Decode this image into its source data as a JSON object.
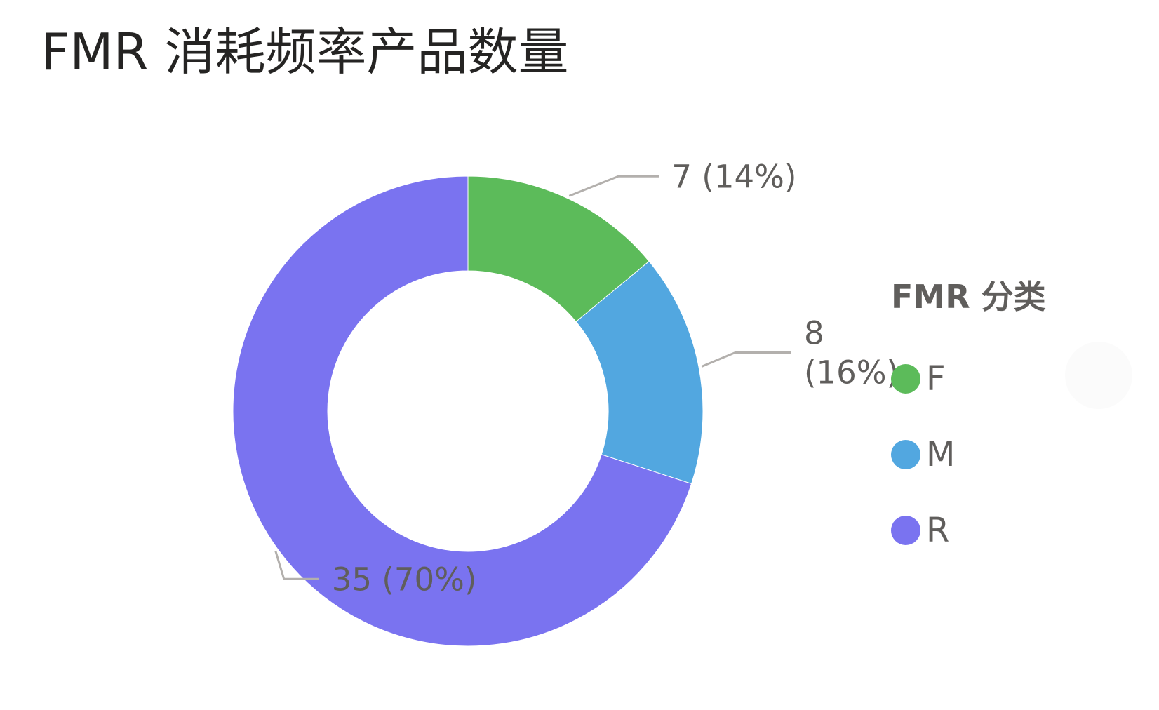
{
  "title": "FMR 消耗频率产品数量",
  "legend": {
    "title": "FMR 分类",
    "items": [
      {
        "label": "F",
        "color": "#5cbb5a"
      },
      {
        "label": "M",
        "color": "#52a7e0"
      },
      {
        "label": "R",
        "color": "#7a73f0"
      }
    ]
  },
  "chart_data": {
    "type": "pie",
    "variant": "donut",
    "title": "FMR 消耗频率产品数量",
    "legend_title": "FMR 分类",
    "legend_position": "right",
    "categories": [
      "F",
      "M",
      "R"
    ],
    "values": [
      7,
      8,
      35
    ],
    "percentages": [
      "14%",
      "16%",
      "70%"
    ],
    "colors": [
      "#5cbb5a",
      "#52a7e0",
      "#7a73f0"
    ],
    "data_labels": [
      "7 (14%)",
      "8 (16%)",
      "35 (70%)"
    ]
  }
}
